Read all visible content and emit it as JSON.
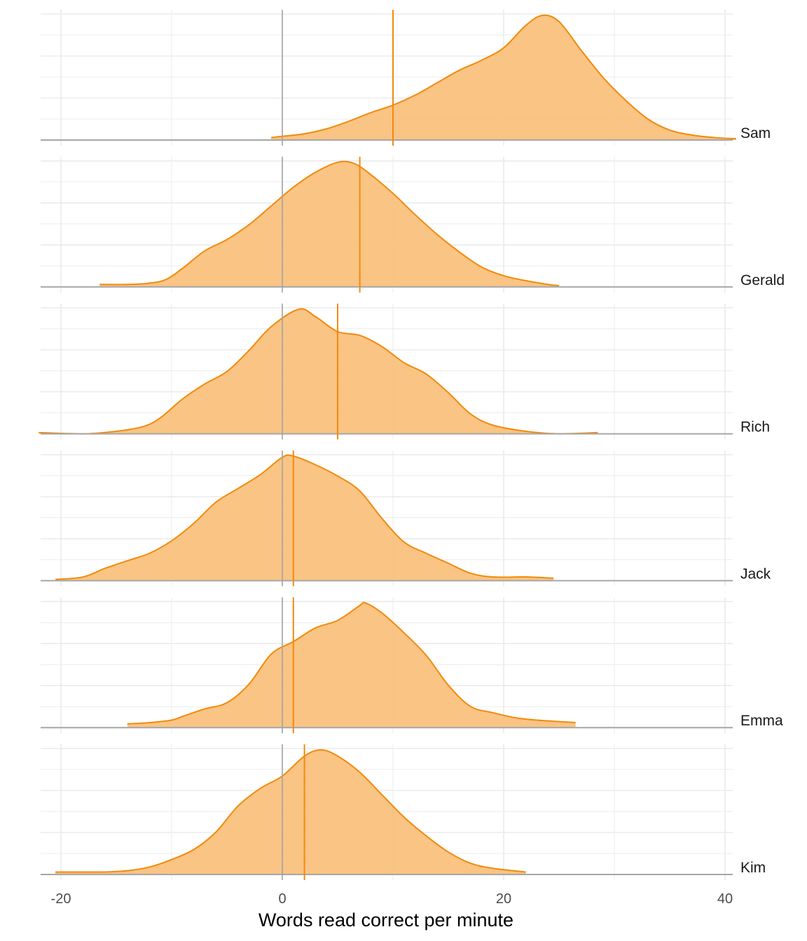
{
  "chart_data": {
    "type": "area",
    "subtype": "faceted-density",
    "title": "",
    "xlabel": "Words read correct per minute",
    "ylabel": "",
    "xlim": [
      -22,
      41
    ],
    "x_ticks": [
      -20,
      0,
      20,
      40
    ],
    "x_tick_labels": [
      "-20",
      "0",
      "20",
      "40"
    ],
    "x_minor_gridlines": [
      -10,
      10,
      30
    ],
    "reference_line_x": 0,
    "grid": true,
    "legend": "none",
    "colors": {
      "fill": "#F9BF7A",
      "line": "#F28A0C",
      "mean_line": "#F28A0C",
      "zero_line": "#A6A6A6",
      "baseline": "#A6A6A6",
      "grid": "#EBEBEB"
    },
    "series": [
      {
        "name": "Sam",
        "mean": 10,
        "x": [
          -1,
          0,
          2,
          4,
          6,
          8,
          10,
          12,
          14,
          16,
          18,
          20,
          22,
          23.5,
          25,
          27,
          29,
          31,
          33,
          35,
          37,
          39,
          41
        ],
        "density": [
          0.02,
          0.03,
          0.05,
          0.09,
          0.15,
          0.22,
          0.28,
          0.36,
          0.46,
          0.56,
          0.64,
          0.74,
          0.92,
          1.0,
          0.95,
          0.72,
          0.5,
          0.32,
          0.17,
          0.08,
          0.04,
          0.02,
          0.01
        ]
      },
      {
        "name": "Gerald",
        "mean": 7,
        "x": [
          -16.5,
          -14,
          -12,
          -10.5,
          -9,
          -7,
          -5,
          -3,
          -1,
          1,
          3,
          5,
          6.5,
          8,
          10,
          12,
          14,
          16,
          18,
          20,
          22,
          24,
          25
        ],
        "density": [
          0.02,
          0.02,
          0.03,
          0.06,
          0.15,
          0.29,
          0.38,
          0.5,
          0.65,
          0.8,
          0.92,
          1.0,
          0.99,
          0.9,
          0.75,
          0.58,
          0.42,
          0.28,
          0.16,
          0.09,
          0.05,
          0.02,
          0.01
        ]
      },
      {
        "name": "Rich",
        "mean": 5,
        "x": [
          -22,
          -18,
          -15,
          -12.5,
          -11,
          -9,
          -7,
          -5,
          -3,
          -1,
          1.5,
          3,
          5,
          7,
          9,
          11,
          13,
          15,
          17,
          19,
          22,
          25,
          28.5
        ],
        "density": [
          0.01,
          0.0,
          0.02,
          0.06,
          0.13,
          0.28,
          0.4,
          0.5,
          0.67,
          0.86,
          1.0,
          0.94,
          0.82,
          0.79,
          0.7,
          0.57,
          0.48,
          0.33,
          0.16,
          0.07,
          0.02,
          0.0,
          0.01
        ]
      },
      {
        "name": "Jack",
        "mean": 1,
        "x": [
          -20.5,
          -18,
          -16,
          -14,
          -12,
          -10,
          -8,
          -6,
          -4,
          -2,
          0,
          1,
          3,
          5,
          7,
          9,
          11,
          13,
          15,
          17,
          19,
          22,
          24.5
        ],
        "density": [
          0.01,
          0.03,
          0.1,
          0.16,
          0.22,
          0.32,
          0.46,
          0.63,
          0.74,
          0.85,
          0.99,
          1.0,
          0.93,
          0.84,
          0.72,
          0.5,
          0.31,
          0.22,
          0.14,
          0.06,
          0.03,
          0.03,
          0.02
        ]
      },
      {
        "name": "Emma",
        "mean": 1,
        "x": [
          -14,
          -12,
          -10,
          -9,
          -7,
          -5,
          -3,
          -1,
          1,
          3,
          5,
          7,
          7.5,
          9,
          11,
          13,
          15,
          17,
          19,
          21,
          23,
          26.5
        ],
        "density": [
          0.03,
          0.04,
          0.06,
          0.09,
          0.15,
          0.2,
          0.35,
          0.59,
          0.69,
          0.8,
          0.86,
          0.98,
          1.0,
          0.92,
          0.76,
          0.58,
          0.34,
          0.17,
          0.12,
          0.08,
          0.06,
          0.04
        ]
      },
      {
        "name": "Kim",
        "mean": 2,
        "x": [
          -20.5,
          -18,
          -16,
          -14,
          -12,
          -10,
          -8,
          -6,
          -4,
          -2,
          0,
          2,
          3.5,
          5,
          7,
          9,
          11,
          13,
          15,
          17,
          19,
          22
        ],
        "density": [
          0.02,
          0.02,
          0.02,
          0.03,
          0.06,
          0.12,
          0.2,
          0.34,
          0.55,
          0.69,
          0.79,
          0.95,
          1.0,
          0.95,
          0.82,
          0.64,
          0.46,
          0.31,
          0.18,
          0.09,
          0.05,
          0.02
        ]
      }
    ]
  }
}
